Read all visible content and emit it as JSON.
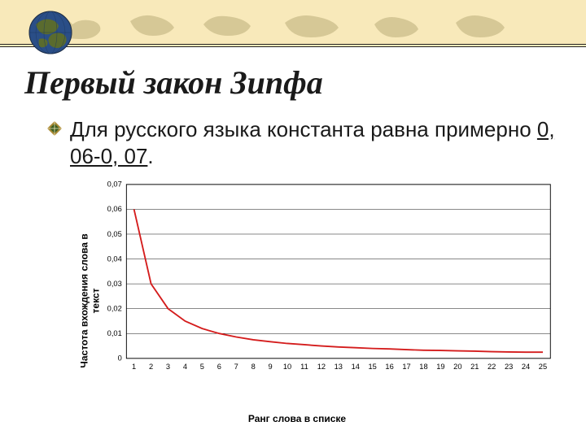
{
  "header": {
    "strip_bg": "#f8e9ba",
    "map_silhouette_fill": "#bcae7a",
    "double_line_color": "#222222"
  },
  "globe": {
    "ocean": "#2a4e87",
    "land": "#5a6b2e",
    "rim": "#222222"
  },
  "title": {
    "text": "Первый закон Зипфа",
    "font_family": "Times New Roman",
    "font_style": "italic",
    "font_size_pt": 30,
    "color": "#1a1a1a"
  },
  "bullet": {
    "icon_outer": "#a88934",
    "icon_inner": "#3b5c1e",
    "text_prefix": "Для русского языка константа равна примерно ",
    "highlight": "0, 06-0, 07",
    "text_suffix": ".",
    "font_family": "Verdana",
    "font_size_pt": 20,
    "color": "#1a1a1a"
  },
  "chart": {
    "type": "line",
    "background_color": "#ffffff",
    "axis_color": "#000000",
    "grid_color": "#000000",
    "series_color": "#d41c1c",
    "line_width": 2,
    "xlabel": "Ранг слова в списке",
    "ylabel": "Частота вхождения слова в\nтекст",
    "label_fontsize": 12,
    "label_fontweight": "bold",
    "tick_fontsize": 10,
    "xlim": [
      1,
      25
    ],
    "ylim": [
      0,
      0.07
    ],
    "xticks": [
      1,
      2,
      3,
      4,
      5,
      6,
      7,
      8,
      9,
      10,
      11,
      12,
      13,
      14,
      15,
      16,
      17,
      18,
      19,
      20,
      21,
      22,
      23,
      24,
      25
    ],
    "yticks": [
      0,
      0.01,
      0.02,
      0.03,
      0.04,
      0.05,
      0.06,
      0.07
    ],
    "ytick_labels": [
      "0",
      "0,01",
      "0,02",
      "0,03",
      "0,04",
      "0,05",
      "0,06",
      "0,07"
    ],
    "x": [
      1,
      2,
      3,
      4,
      5,
      6,
      7,
      8,
      9,
      10,
      11,
      12,
      13,
      14,
      15,
      16,
      17,
      18,
      19,
      20,
      21,
      22,
      23,
      24,
      25
    ],
    "y": [
      0.06,
      0.03,
      0.02,
      0.015,
      0.012,
      0.01,
      0.0086,
      0.0075,
      0.0067,
      0.006,
      0.0055,
      0.005,
      0.0046,
      0.0043,
      0.004,
      0.0038,
      0.0035,
      0.0033,
      0.0032,
      0.003,
      0.0029,
      0.0027,
      0.0026,
      0.0025,
      0.0025
    ]
  }
}
